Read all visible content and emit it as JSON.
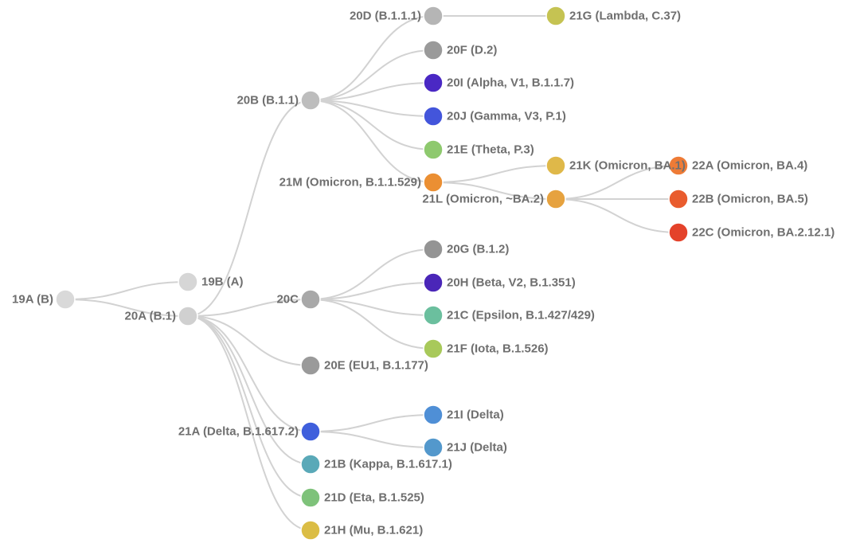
{
  "nodes": [
    {
      "id": "19A",
      "label": "19A (B)",
      "color": "#d9d9d9"
    },
    {
      "id": "19B",
      "label": "19B (A)",
      "color": "#d6d6d6"
    },
    {
      "id": "20A",
      "label": "20A (B.1)",
      "color": "#d0d0d0"
    },
    {
      "id": "20B",
      "label": "20B (B.1.1)",
      "color": "#bdbdbd"
    },
    {
      "id": "20C",
      "label": "20C",
      "color": "#a8a8a8"
    },
    {
      "id": "20D",
      "label": "20D (B.1.1.1)",
      "color": "#b5b5b5"
    },
    {
      "id": "20E",
      "label": "20E (EU1, B.1.177)",
      "color": "#9a9a9a"
    },
    {
      "id": "20F",
      "label": "20F (D.2)",
      "color": "#9a9a9a"
    },
    {
      "id": "20G",
      "label": "20G (B.1.2)",
      "color": "#949494"
    },
    {
      "id": "20H",
      "label": "20H (Beta, V2, B.1.351)",
      "color": "#4a26b8"
    },
    {
      "id": "20I",
      "label": "20I (Alpha, V1, B.1.1.7)",
      "color": "#4a28c4"
    },
    {
      "id": "20J",
      "label": "20J (Gamma, V3, P.1)",
      "color": "#4355db"
    },
    {
      "id": "21A",
      "label": "21A (Delta, B.1.617.2)",
      "color": "#3f5fdc"
    },
    {
      "id": "21B",
      "label": "21B (Kappa, B.1.617.1)",
      "color": "#5aa9b8"
    },
    {
      "id": "21C",
      "label": "21C (Epsilon, B.1.427/429)",
      "color": "#6bbf9e"
    },
    {
      "id": "21D",
      "label": "21D (Eta, B.1.525)",
      "color": "#7ec27a"
    },
    {
      "id": "21E",
      "label": "21E (Theta, P.3)",
      "color": "#8ec96e"
    },
    {
      "id": "21F",
      "label": "21F (Iota, B.1.526)",
      "color": "#a8c95a"
    },
    {
      "id": "21G",
      "label": "21G (Lambda, C.37)",
      "color": "#c5c352"
    },
    {
      "id": "21H",
      "label": "21H (Mu, B.1.621)",
      "color": "#dbbd45"
    },
    {
      "id": "21I",
      "label": "21I (Delta)",
      "color": "#4f8fd6"
    },
    {
      "id": "21J",
      "label": "21J (Delta)",
      "color": "#5398cc"
    },
    {
      "id": "21K",
      "label": "21K (Omicron, BA.1)",
      "color": "#dfb849"
    },
    {
      "id": "21L",
      "label": "21L (Omicron, ~BA.2)",
      "color": "#e6a23f"
    },
    {
      "id": "21M",
      "label": "21M (Omicron, B.1.1.529)",
      "color": "#eb8f33"
    },
    {
      "id": "22A",
      "label": "22A (Omicron, BA.4)",
      "color": "#ee7b36"
    },
    {
      "id": "22B",
      "label": "22B (Omicron, BA.5)",
      "color": "#e95c2e"
    },
    {
      "id": "22C",
      "label": "22C (Omicron, BA.2.12.1)",
      "color": "#e4422a"
    }
  ],
  "edges": [
    [
      "19A",
      "19B"
    ],
    [
      "19A",
      "20A"
    ],
    [
      "20A",
      "20B"
    ],
    [
      "20A",
      "20C"
    ],
    [
      "20A",
      "20E"
    ],
    [
      "20A",
      "21A"
    ],
    [
      "20A",
      "21B"
    ],
    [
      "20A",
      "21D"
    ],
    [
      "20A",
      "21H"
    ],
    [
      "20B",
      "20D"
    ],
    [
      "20B",
      "20F"
    ],
    [
      "20B",
      "20I"
    ],
    [
      "20B",
      "20J"
    ],
    [
      "20B",
      "21E"
    ],
    [
      "20B",
      "21M"
    ],
    [
      "20D",
      "21G"
    ],
    [
      "21M",
      "21K"
    ],
    [
      "21M",
      "21L"
    ],
    [
      "21L",
      "22A"
    ],
    [
      "21L",
      "22B"
    ],
    [
      "21L",
      "22C"
    ],
    [
      "20C",
      "20G"
    ],
    [
      "20C",
      "20H"
    ],
    [
      "20C",
      "21C"
    ],
    [
      "20C",
      "21F"
    ],
    [
      "21A",
      "21I"
    ],
    [
      "21A",
      "21J"
    ]
  ],
  "colors": {
    "edge": "#d2d2d2",
    "label": "#6f6f6f",
    "background": "#ffffff"
  }
}
